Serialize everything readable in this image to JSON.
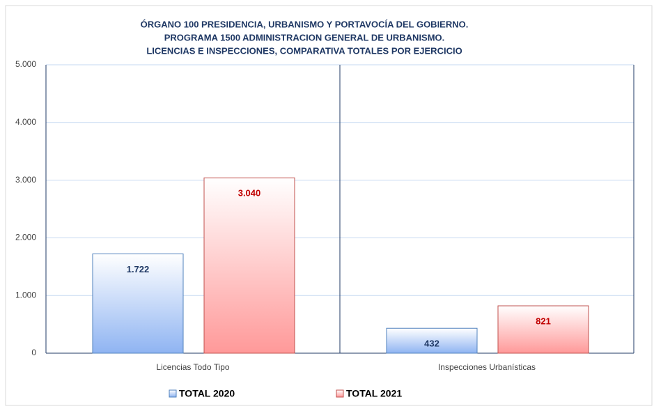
{
  "chart_data": {
    "type": "bar",
    "title": [
      "ÓRGANO 100 PRESIDENCIA, URBANISMO Y PORTAVOCÍA DEL GOBIERNO.",
      "PROGRAMA 1500 ADMINISTRACION GENERAL DE URBANISMO.",
      "LICENCIAS E INSPECCIONES, COMPARATIVA TOTALES POR EJERCICIO"
    ],
    "categories": [
      "Licencias Todo Tipo",
      "Inspecciones Urbanísticas"
    ],
    "series": [
      {
        "name": "TOTAL 2020",
        "color": "#8fb4f2",
        "border_color": "#4f81bd",
        "label_color": "#1f3864",
        "values": [
          1722,
          432
        ],
        "value_labels": [
          "1.722",
          "432"
        ]
      },
      {
        "name": "TOTAL 2021",
        "color": "#ff9999",
        "border_color": "#c0504d",
        "label_color": "#c00000",
        "values": [
          3040,
          821
        ],
        "value_labels": [
          "3.040",
          "821"
        ]
      }
    ],
    "ylim": [
      0,
      5000
    ],
    "yticks": [
      0,
      {
        "value": 1000,
        "label": "1.000"
      },
      {
        "value": 2000,
        "label": "2.000"
      },
      {
        "value": 3000,
        "label": "3.000"
      },
      {
        "value": 4000,
        "label": "4.000"
      },
      {
        "value": 5000,
        "label": "5.000"
      }
    ],
    "grid": true,
    "legend": "bottom"
  }
}
